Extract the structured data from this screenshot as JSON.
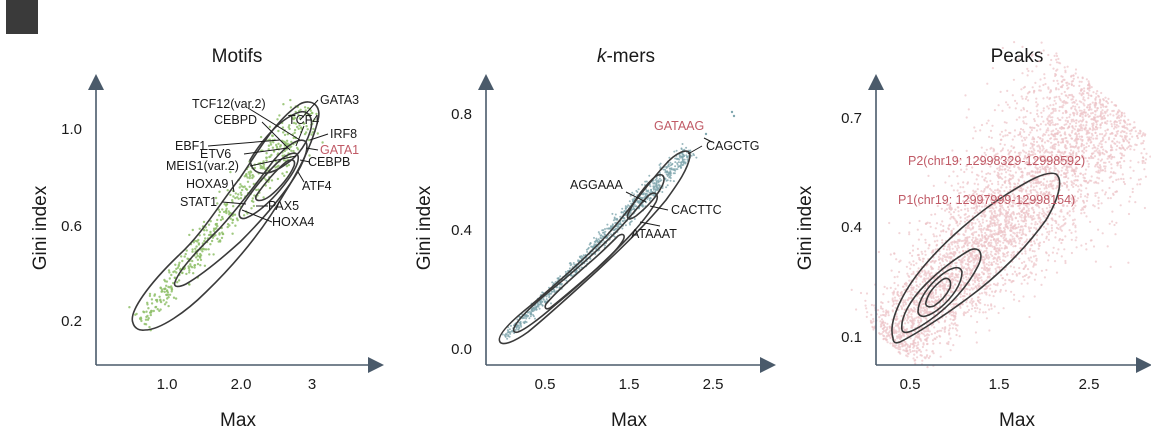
{
  "chart_data": [
    {
      "type": "scatter",
      "title": "Motifs",
      "xlabel": "Max",
      "ylabel": "Gini index",
      "xticks": [
        "1.0",
        "2.0",
        "3"
      ],
      "yticks": [
        "0.2",
        "0.6",
        "1.0"
      ],
      "xlim": [
        0.0,
        3.8
      ],
      "ylim": [
        0.1,
        1.2
      ],
      "point_color": "#8fbf6a",
      "contour_color": "#3a3a3a",
      "annotations": [
        {
          "label": "TCF12(var.2)",
          "x": 2.6,
          "y": 1.02,
          "highlight": false
        },
        {
          "label": "GATA3",
          "x": 3.0,
          "y": 1.04,
          "highlight": false
        },
        {
          "label": "CEBPD",
          "x": 2.45,
          "y": 0.98,
          "highlight": false
        },
        {
          "label": "TCF4",
          "x": 2.95,
          "y": 0.93,
          "highlight": false
        },
        {
          "label": "IRF8",
          "x": 3.15,
          "y": 0.96,
          "highlight": false
        },
        {
          "label": "EBF1",
          "x": 2.1,
          "y": 0.93,
          "highlight": false
        },
        {
          "label": "GATA1",
          "x": 3.1,
          "y": 0.93,
          "highlight": true
        },
        {
          "label": "ETV6",
          "x": 2.4,
          "y": 0.9,
          "highlight": false
        },
        {
          "label": "MEIS1(var.2)",
          "x": 2.75,
          "y": 0.88,
          "highlight": false
        },
        {
          "label": "CEBPB",
          "x": 2.9,
          "y": 0.91,
          "highlight": false
        },
        {
          "label": "HOXA9",
          "x": 1.85,
          "y": 0.77,
          "highlight": false
        },
        {
          "label": "ATF4",
          "x": 2.85,
          "y": 0.82,
          "highlight": false
        },
        {
          "label": "STAT1",
          "x": 1.95,
          "y": 0.7,
          "highlight": false
        },
        {
          "label": "PAX5",
          "x": 2.45,
          "y": 0.68,
          "highlight": false
        },
        {
          "label": "HOXA4",
          "x": 2.4,
          "y": 0.64,
          "highlight": false
        }
      ]
    },
    {
      "type": "scatter",
      "title": "k-mers",
      "title_italic_prefix": "k",
      "title_suffix": "-mers",
      "xlabel": "Max",
      "ylabel": "Gini index",
      "xticks": [
        "0.5",
        "1.5",
        "2.5"
      ],
      "yticks": [
        "0.0",
        "0.4",
        "0.8"
      ],
      "xlim": [
        -0.4,
        3.4
      ],
      "ylim": [
        -0.05,
        0.9
      ],
      "point_color": "#7fa6ae",
      "contour_color": "#3a3a3a",
      "annotations": [
        {
          "label": "GATAAG",
          "x": 2.45,
          "y": 0.7,
          "highlight": true
        },
        {
          "label": "CAGCTG",
          "x": 2.3,
          "y": 0.66,
          "highlight": false
        },
        {
          "label": "AGGAAA",
          "x": 1.55,
          "y": 0.55,
          "highlight": false
        },
        {
          "label": "CACTTC",
          "x": 1.75,
          "y": 0.47,
          "highlight": false
        },
        {
          "label": "ATAAAT",
          "x": 1.55,
          "y": 0.42,
          "highlight": false
        }
      ]
    },
    {
      "type": "scatter",
      "title": "Peaks",
      "xlabel": "Max",
      "ylabel": "Gini index",
      "xticks": [
        "0.5",
        "1.5",
        "2.5"
      ],
      "yticks": [
        "0.1",
        "0.4",
        "0.7"
      ],
      "xlim": [
        -0.4,
        3.4
      ],
      "ylim": [
        0.0,
        0.8
      ],
      "point_color": "#ecc3c8",
      "contour_color": "#3a3a3a",
      "annotations": [
        {
          "label": "P2(chr19: 12998329-12998592)",
          "x": 2.0,
          "y": 0.55,
          "highlight": true
        },
        {
          "label": "P1(chr19: 12997999-12998154)",
          "x": 1.3,
          "y": 0.42,
          "highlight": true
        }
      ]
    }
  ]
}
